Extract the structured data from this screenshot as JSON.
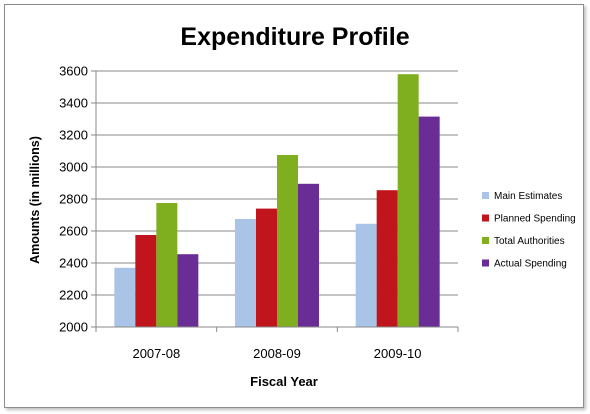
{
  "chart_data": {
    "type": "bar",
    "title": "Expenditure Profile",
    "xlabel": "Fiscal Year",
    "ylabel": "Amounts (in millions)",
    "categories": [
      "2007-08",
      "2008-09",
      "2009-10"
    ],
    "ylim": [
      2000,
      3600
    ],
    "yticks": [
      2000,
      2200,
      2400,
      2600,
      2800,
      3000,
      3200,
      3400,
      3600
    ],
    "grid": true,
    "legend_position": "right",
    "series": [
      {
        "name": "Main Estimates",
        "color": "#a9c4e6",
        "values": [
          2370,
          2675,
          2645
        ]
      },
      {
        "name": "Planned Spending",
        "color": "#c0151c",
        "values": [
          2575,
          2740,
          2855
        ]
      },
      {
        "name": "Total Authorities",
        "color": "#7fae1f",
        "values": [
          2775,
          3075,
          3580
        ]
      },
      {
        "name": "Actual Spending",
        "color": "#6a2d96",
        "values": [
          2455,
          2895,
          3315
        ]
      }
    ]
  }
}
